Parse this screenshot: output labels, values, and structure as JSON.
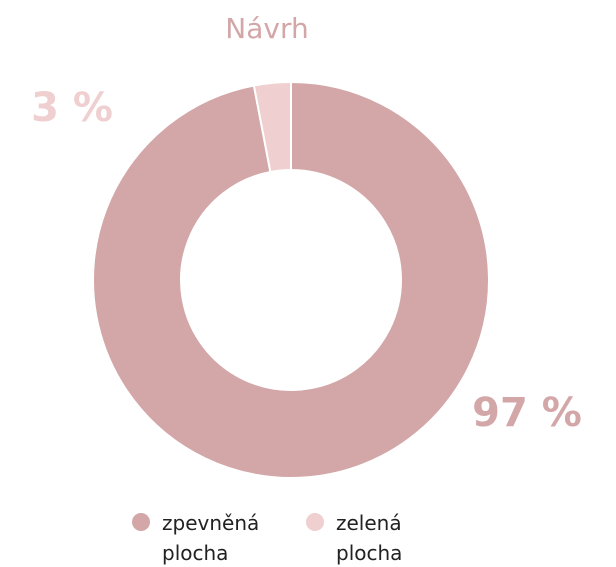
{
  "chart_data": {
    "type": "pie",
    "title": "Návrh",
    "categories": [
      "zpevněná plocha",
      "zelená plocha"
    ],
    "values": [
      97,
      3
    ],
    "value_labels": [
      "97 %",
      "3 %"
    ],
    "colors": [
      "#d3a6a8",
      "#efcfd0"
    ],
    "donut": true
  }
}
